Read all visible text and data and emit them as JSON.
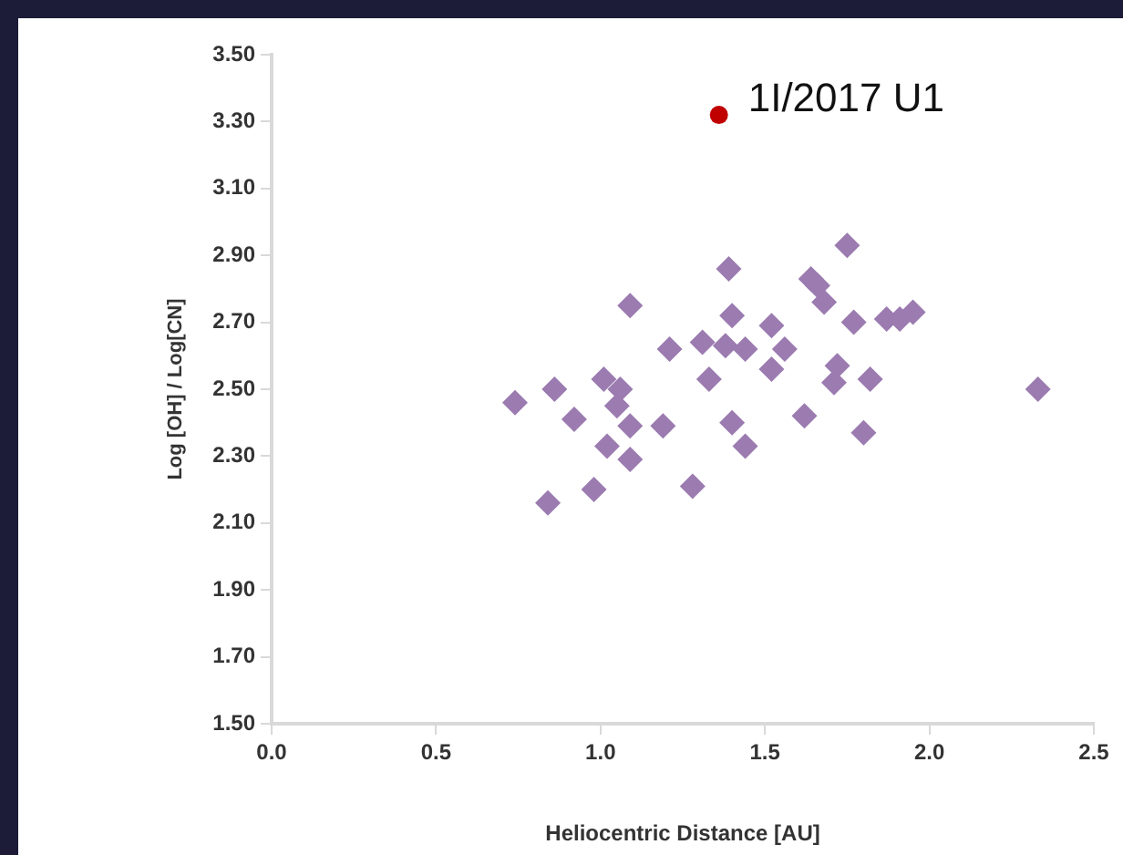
{
  "chart_data": {
    "type": "scatter",
    "xlabel": "Heliocentric Distance [AU]",
    "ylabel": "Log [OH] / Log[CN]",
    "xlim": [
      0,
      2.5
    ],
    "xticks": [
      {
        "value": 0,
        "label": "0.0"
      },
      {
        "value": 0.5,
        "label": "0.5"
      },
      {
        "value": 1,
        "label": "1.0"
      },
      {
        "value": 1.5,
        "label": "1.5"
      },
      {
        "value": 2,
        "label": "2.0"
      },
      {
        "value": 2.5,
        "label": "2.5"
      }
    ],
    "ylim": [
      1.5,
      3.5
    ],
    "yticks": [
      {
        "value": 1.5,
        "label": "1.50"
      },
      {
        "value": 1.7,
        "label": "1.70"
      },
      {
        "value": 1.9,
        "label": "1.90"
      },
      {
        "value": 2.1,
        "label": "2.10"
      },
      {
        "value": 2.3,
        "label": "2.30"
      },
      {
        "value": 2.5,
        "label": "2.50"
      },
      {
        "value": 2.7,
        "label": "2.70"
      },
      {
        "value": 2.9,
        "label": "2.90"
      },
      {
        "value": 3.1,
        "label": "3.10"
      },
      {
        "value": 3.3,
        "label": "3.30"
      },
      {
        "value": 3.5,
        "label": "3.50"
      }
    ],
    "grid": false,
    "legend": false,
    "series": [
      {
        "color": "#9b7bb0",
        "marker": "diamond",
        "x": [
          0.74,
          0.86,
          0.92,
          0.84,
          0.98,
          1.01,
          1.06,
          1.05,
          1.02,
          1.09,
          1.09,
          1.09,
          1.19,
          1.21,
          1.31,
          1.33,
          1.28,
          1.38,
          1.4,
          1.44,
          1.4,
          1.44,
          1.52,
          1.52,
          1.56,
          1.62,
          1.71,
          1.72,
          1.68,
          1.77,
          1.82,
          1.8,
          1.87,
          1.91,
          1.95,
          2.33,
          1.39,
          1.75,
          1.64,
          1.66
        ],
        "values": [
          2.46,
          2.5,
          2.41,
          2.16,
          2.2,
          2.53,
          2.5,
          2.45,
          2.33,
          2.39,
          2.29,
          2.75,
          2.39,
          2.62,
          2.64,
          2.53,
          2.21,
          2.63,
          2.72,
          2.62,
          2.4,
          2.33,
          2.69,
          2.56,
          2.62,
          2.42,
          2.52,
          2.57,
          2.76,
          2.7,
          2.53,
          2.37,
          2.71,
          2.71,
          2.73,
          2.5,
          2.86,
          2.93,
          2.83,
          2.81
        ]
      },
      {
        "color": "#c00000",
        "marker": "circle",
        "x": [
          1.36
        ],
        "values": [
          3.32
        ]
      }
    ],
    "annotations": [
      {
        "text": "1I/2017 U1",
        "x": 1.36,
        "y": 3.32
      }
    ]
  }
}
